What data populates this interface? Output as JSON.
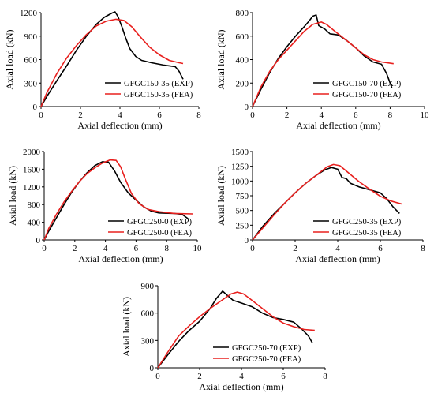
{
  "chart_data": [
    {
      "type": "line",
      "xlabel": "Axial deflection (mm)",
      "ylabel": "Axial load (kN)",
      "xlim": [
        0,
        8
      ],
      "ylim": [
        0,
        1200
      ],
      "xticks": [
        0,
        2,
        4,
        6,
        8
      ],
      "yticks": [
        0,
        300,
        600,
        900,
        1200
      ],
      "legend": "bottom-right",
      "series": [
        {
          "name": "GFGC150-35 (EXP)",
          "color": "#000000",
          "points": [
            [
              0,
              0
            ],
            [
              0.3,
              130
            ],
            [
              0.8,
              330
            ],
            [
              1.3,
              520
            ],
            [
              1.8,
              720
            ],
            [
              2.3,
              900
            ],
            [
              2.8,
              1050
            ],
            [
              3.2,
              1140
            ],
            [
              3.6,
              1195
            ],
            [
              3.75,
              1210
            ],
            [
              3.9,
              1150
            ],
            [
              4.1,
              1020
            ],
            [
              4.3,
              870
            ],
            [
              4.5,
              740
            ],
            [
              4.8,
              640
            ],
            [
              5.1,
              590
            ],
            [
              5.6,
              560
            ],
            [
              6.2,
              530
            ],
            [
              6.8,
              510
            ],
            [
              7.0,
              450
            ],
            [
              7.2,
              350
            ]
          ]
        },
        {
          "name": "GFGC150-35 (FEA)",
          "color": "#e8201e",
          "points": [
            [
              0,
              0
            ],
            [
              0.3,
              180
            ],
            [
              0.8,
              420
            ],
            [
              1.3,
              620
            ],
            [
              1.8,
              780
            ],
            [
              2.3,
              920
            ],
            [
              2.8,
              1030
            ],
            [
              3.3,
              1090
            ],
            [
              3.8,
              1115
            ],
            [
              4.2,
              1100
            ],
            [
              4.6,
              1020
            ],
            [
              5.0,
              900
            ],
            [
              5.5,
              760
            ],
            [
              6.0,
              660
            ],
            [
              6.5,
              590
            ],
            [
              7.0,
              560
            ],
            [
              7.2,
              550
            ]
          ]
        }
      ]
    },
    {
      "type": "line",
      "xlabel": "Axial deflection (mm)",
      "ylabel": "Axial load (kN)",
      "xlim": [
        0,
        10
      ],
      "ylim": [
        0,
        800
      ],
      "xticks": [
        0,
        2,
        4,
        6,
        8,
        10
      ],
      "yticks": [
        0,
        200,
        400,
        600,
        800
      ],
      "legend": "bottom-right",
      "series": [
        {
          "name": "GFGC150-70 (EXP)",
          "color": "#000000",
          "points": [
            [
              0,
              0
            ],
            [
              0.5,
              150
            ],
            [
              1.0,
              290
            ],
            [
              1.5,
              410
            ],
            [
              2.0,
              510
            ],
            [
              2.5,
              600
            ],
            [
              3.0,
              680
            ],
            [
              3.3,
              730
            ],
            [
              3.5,
              770
            ],
            [
              3.7,
              780
            ],
            [
              3.85,
              690
            ],
            [
              4.2,
              660
            ],
            [
              4.5,
              620
            ],
            [
              5.0,
              610
            ],
            [
              5.5,
              560
            ],
            [
              6.0,
              500
            ],
            [
              6.5,
              430
            ],
            [
              7.0,
              380
            ],
            [
              7.5,
              360
            ],
            [
              7.8,
              280
            ],
            [
              8.1,
              160
            ]
          ]
        },
        {
          "name": "GFGC150-70 (FEA)",
          "color": "#e8201e",
          "points": [
            [
              0,
              0
            ],
            [
              0.5,
              170
            ],
            [
              1.0,
              300
            ],
            [
              1.5,
              400
            ],
            [
              2.0,
              480
            ],
            [
              2.5,
              560
            ],
            [
              3.0,
              640
            ],
            [
              3.5,
              700
            ],
            [
              4.0,
              720
            ],
            [
              4.3,
              700
            ],
            [
              4.8,
              640
            ],
            [
              5.5,
              560
            ],
            [
              6.0,
              500
            ],
            [
              6.5,
              440
            ],
            [
              7.0,
              400
            ],
            [
              7.5,
              380
            ],
            [
              8.2,
              365
            ]
          ]
        }
      ]
    },
    {
      "type": "line",
      "xlabel": "Axial deflection (mm)",
      "ylabel": "Axial load (kN)",
      "xlim": [
        0,
        10
      ],
      "ylim": [
        0,
        2000
      ],
      "xticks": [
        0,
        2,
        4,
        6,
        8,
        10
      ],
      "yticks": [
        0,
        400,
        800,
        1200,
        1600,
        2000
      ],
      "legend": "bottom-right",
      "series": [
        {
          "name": "GFGC250-0 (EXP)",
          "color": "#000000",
          "points": [
            [
              0,
              0
            ],
            [
              0.3,
              200
            ],
            [
              0.8,
              500
            ],
            [
              1.3,
              800
            ],
            [
              1.8,
              1080
            ],
            [
              2.3,
              1320
            ],
            [
              2.8,
              1520
            ],
            [
              3.3,
              1680
            ],
            [
              3.8,
              1770
            ],
            [
              4.2,
              1760
            ],
            [
              4.6,
              1560
            ],
            [
              5.0,
              1300
            ],
            [
              5.5,
              1060
            ],
            [
              6.0,
              900
            ],
            [
              6.5,
              750
            ],
            [
              7.0,
              650
            ],
            [
              7.5,
              610
            ],
            [
              8.5,
              600
            ],
            [
              9.0,
              580
            ],
            [
              9.4,
              480
            ]
          ]
        },
        {
          "name": "GFGC250-0 (FEA)",
          "color": "#e8201e",
          "points": [
            [
              0,
              0
            ],
            [
              0.3,
              260
            ],
            [
              0.8,
              580
            ],
            [
              1.3,
              860
            ],
            [
              1.8,
              1100
            ],
            [
              2.3,
              1320
            ],
            [
              2.8,
              1500
            ],
            [
              3.3,
              1630
            ],
            [
              3.8,
              1740
            ],
            [
              4.3,
              1810
            ],
            [
              4.7,
              1800
            ],
            [
              5.0,
              1650
            ],
            [
              5.3,
              1380
            ],
            [
              5.7,
              1050
            ],
            [
              6.2,
              820
            ],
            [
              6.8,
              690
            ],
            [
              7.5,
              640
            ],
            [
              8.5,
              600
            ],
            [
              9.7,
              590
            ]
          ]
        }
      ]
    },
    {
      "type": "line",
      "xlabel": "Axial deflection (mm)",
      "ylabel": "Axial load (kN)",
      "xlim": [
        0,
        8
      ],
      "ylim": [
        0,
        1500
      ],
      "xticks": [
        0,
        2,
        4,
        6,
        8
      ],
      "yticks": [
        0,
        250,
        500,
        750,
        1000,
        1250,
        1500
      ],
      "legend": "bottom-right",
      "series": [
        {
          "name": "GFGC250-35 (EXP)",
          "color": "#000000",
          "points": [
            [
              0,
              0
            ],
            [
              0.5,
              240
            ],
            [
              1.0,
              440
            ],
            [
              1.5,
              620
            ],
            [
              2.0,
              800
            ],
            [
              2.5,
              960
            ],
            [
              3.0,
              1100
            ],
            [
              3.4,
              1190
            ],
            [
              3.7,
              1230
            ],
            [
              4.0,
              1200
            ],
            [
              4.2,
              1060
            ],
            [
              4.4,
              1040
            ],
            [
              4.6,
              960
            ],
            [
              5.0,
              900
            ],
            [
              5.5,
              850
            ],
            [
              6.0,
              800
            ],
            [
              6.3,
              700
            ],
            [
              6.6,
              560
            ],
            [
              6.9,
              450
            ]
          ]
        },
        {
          "name": "GFGC250-35 (FEA)",
          "color": "#e8201e",
          "points": [
            [
              0,
              0
            ],
            [
              0.5,
              210
            ],
            [
              1.0,
              420
            ],
            [
              1.5,
              620
            ],
            [
              2.0,
              800
            ],
            [
              2.5,
              960
            ],
            [
              3.0,
              1100
            ],
            [
              3.5,
              1240
            ],
            [
              3.8,
              1280
            ],
            [
              4.1,
              1260
            ],
            [
              4.5,
              1140
            ],
            [
              5.0,
              990
            ],
            [
              5.5,
              860
            ],
            [
              6.0,
              740
            ],
            [
              6.5,
              660
            ],
            [
              7.0,
              610
            ]
          ]
        }
      ]
    },
    {
      "type": "line",
      "xlabel": "Axial deflection (mm)",
      "ylabel": "Axial load (kN)",
      "xlim": [
        0,
        8
      ],
      "ylim": [
        0,
        900
      ],
      "xticks": [
        0,
        2,
        4,
        6,
        8
      ],
      "yticks": [
        0,
        300,
        600,
        900
      ],
      "legend": "bottom-right",
      "series": [
        {
          "name": "GFGC250-70 (EXP)",
          "color": "#000000",
          "points": [
            [
              0,
              0
            ],
            [
              0.5,
              150
            ],
            [
              1.0,
              290
            ],
            [
              1.5,
              410
            ],
            [
              2.0,
              510
            ],
            [
              2.5,
              650
            ],
            [
              2.8,
              760
            ],
            [
              3.1,
              840
            ],
            [
              3.3,
              800
            ],
            [
              3.6,
              740
            ],
            [
              4.0,
              710
            ],
            [
              4.5,
              670
            ],
            [
              5.0,
              600
            ],
            [
              5.5,
              550
            ],
            [
              6.0,
              530
            ],
            [
              6.5,
              500
            ],
            [
              6.9,
              420
            ],
            [
              7.2,
              350
            ],
            [
              7.4,
              270
            ]
          ]
        },
        {
          "name": "GFGC250-70 (FEA)",
          "color": "#e8201e",
          "points": [
            [
              0,
              0
            ],
            [
              0.5,
              180
            ],
            [
              1.0,
              350
            ],
            [
              1.5,
              460
            ],
            [
              2.0,
              560
            ],
            [
              2.5,
              650
            ],
            [
              3.0,
              730
            ],
            [
              3.5,
              810
            ],
            [
              3.8,
              830
            ],
            [
              4.1,
              810
            ],
            [
              4.5,
              740
            ],
            [
              5.0,
              650
            ],
            [
              5.5,
              560
            ],
            [
              6.0,
              490
            ],
            [
              6.5,
              450
            ],
            [
              7.0,
              420
            ],
            [
              7.5,
              410
            ]
          ]
        }
      ]
    }
  ]
}
